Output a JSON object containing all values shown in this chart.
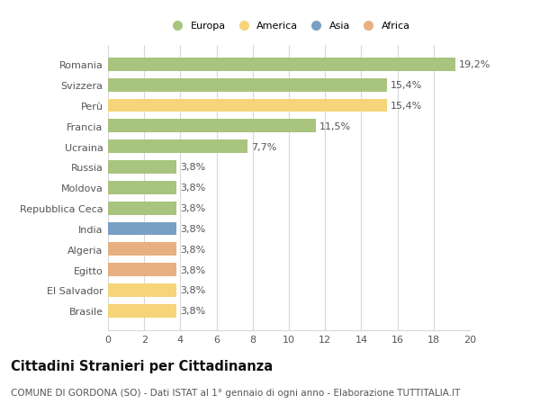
{
  "countries": [
    "Romania",
    "Svizzera",
    "Perù",
    "Francia",
    "Ucraina",
    "Russia",
    "Moldova",
    "Repubblica Ceca",
    "India",
    "Algeria",
    "Egitto",
    "El Salvador",
    "Brasile"
  ],
  "values": [
    19.2,
    15.4,
    15.4,
    11.5,
    7.7,
    3.8,
    3.8,
    3.8,
    3.8,
    3.8,
    3.8,
    3.8,
    3.8
  ],
  "labels": [
    "19,2%",
    "15,4%",
    "15,4%",
    "11,5%",
    "7,7%",
    "3,8%",
    "3,8%",
    "3,8%",
    "3,8%",
    "3,8%",
    "3,8%",
    "3,8%",
    "3,8%"
  ],
  "continents": [
    "Europa",
    "Europa",
    "America",
    "Europa",
    "Europa",
    "Europa",
    "Europa",
    "Europa",
    "Asia",
    "Africa",
    "Africa",
    "America",
    "America"
  ],
  "colors": {
    "Europa": "#a8c47e",
    "America": "#f5d47a",
    "Asia": "#7a9fc4",
    "Africa": "#e8b080"
  },
  "xlim": [
    0,
    20
  ],
  "xticks": [
    0,
    2,
    4,
    6,
    8,
    10,
    12,
    14,
    16,
    18,
    20
  ],
  "title": "Cittadini Stranieri per Cittadinanza",
  "subtitle": "COMUNE DI GORDONA (SO) - Dati ISTAT al 1° gennaio di ogni anno - Elaborazione TUTTITALIA.IT",
  "background_color": "#ffffff",
  "grid_color": "#d8d8d8",
  "bar_height": 0.65,
  "label_fontsize": 8,
  "tick_fontsize": 8,
  "title_fontsize": 10.5,
  "subtitle_fontsize": 7.5,
  "legend_entries": [
    "Europa",
    "America",
    "Asia",
    "Africa"
  ]
}
